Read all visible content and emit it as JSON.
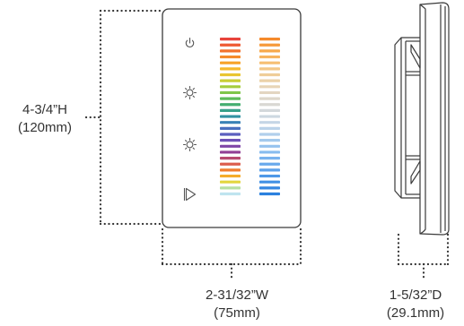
{
  "dimensions": {
    "height": {
      "imperial": "4-3/4”H",
      "metric": "(120mm)"
    },
    "width": {
      "imperial": "2-31/32”W",
      "metric": "(75mm)"
    },
    "depth": {
      "imperial": "1-5/32”D",
      "metric": "(29.1mm)"
    }
  },
  "icons": [
    "power-icon",
    "brightness-icon",
    "brightness-icon",
    "play-icon"
  ],
  "left_strip_colors": [
    "#e8433b",
    "#ee5a33",
    "#f2722e",
    "#f58a2b",
    "#f7a229",
    "#f6b82c",
    "#e9c531",
    "#c9cd35",
    "#a5cd3d",
    "#7fc64a",
    "#5dbb5a",
    "#44ae70",
    "#37a089",
    "#3292a2",
    "#3a82b6",
    "#4a70bf",
    "#5c5fbf",
    "#6e51b6",
    "#7f46a7",
    "#913f96",
    "#b74a71",
    "#dc5f4f",
    "#f07e2f",
    "#f5ac2b",
    "#e3d63e",
    "#b7e0a3",
    "#bfe4ef"
  ],
  "right_strip_colors": [
    "#f58a2b",
    "#f69a3b",
    "#f7a94c",
    "#f7b45f",
    "#f6bf73",
    "#f3c787",
    "#efcd99",
    "#ebd2a9",
    "#e7d5b6",
    "#e3d6c1",
    "#ded7cb",
    "#d9d8d3",
    "#d3d8db",
    "#cdd8e1",
    "#c5d6e6",
    "#bbd3ea",
    "#b0cfec",
    "#a3c9ed",
    "#96c3ee",
    "#88bcef",
    "#79b3ee",
    "#6aaaec",
    "#5ca1ea",
    "#4e98e7",
    "#4190e4",
    "#3587e1",
    "#2b80de"
  ]
}
